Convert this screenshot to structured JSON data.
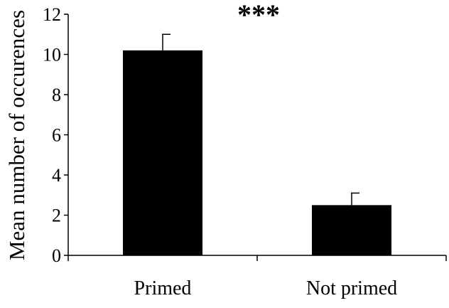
{
  "chart_data": {
    "type": "bar",
    "categories": [
      "Primed",
      "Not primed"
    ],
    "values": [
      10.2,
      2.5
    ],
    "error_upper": [
      11.0,
      3.1
    ],
    "ylabel": "Mean number of occurences",
    "xlabel": "",
    "ylim": [
      0,
      12
    ],
    "yticks": [
      "0",
      "2",
      "4",
      "6",
      "8",
      "10",
      "12"
    ],
    "annotation": "***",
    "grid": false,
    "legend": "none",
    "bar_color": "#000000"
  }
}
